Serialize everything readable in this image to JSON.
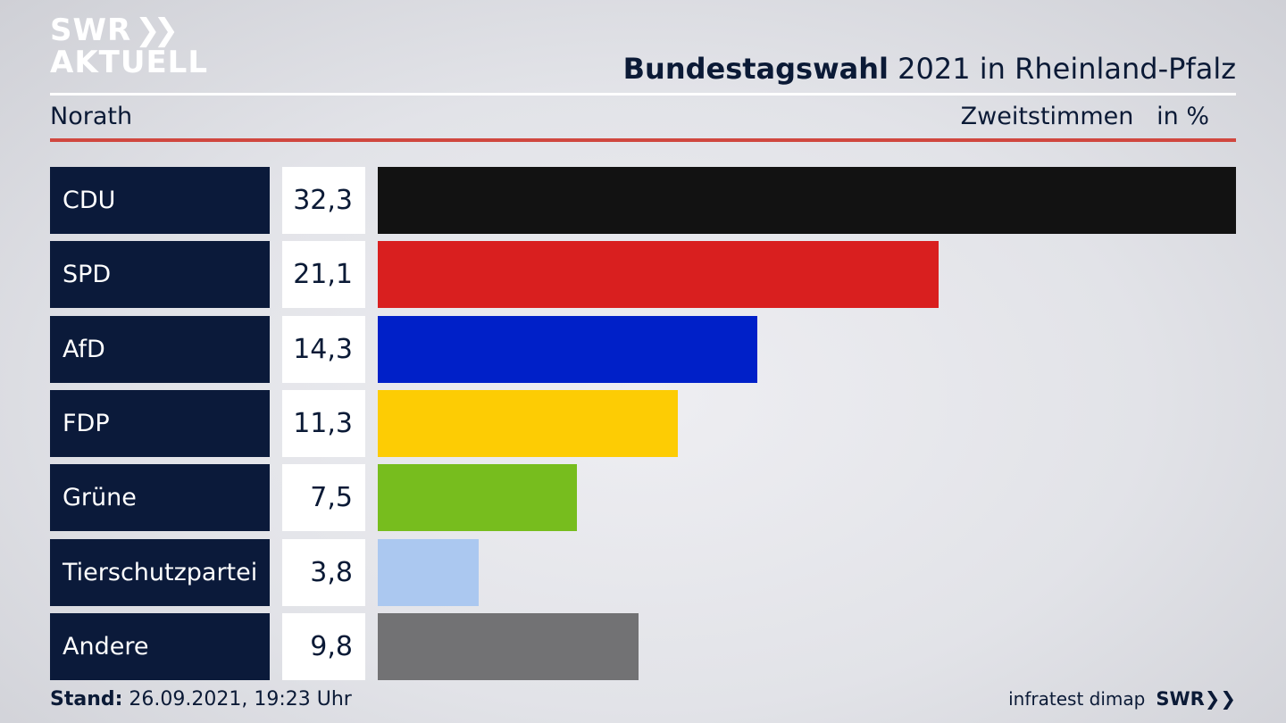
{
  "logo": {
    "line1": "SWR",
    "line2": "AKTUELL",
    "chevron_icon": "double-chevron-right-icon"
  },
  "header": {
    "title_bold": "Bundestagswahl",
    "title_rest": "2021 in Rheinland-Pfalz",
    "location": "Norath",
    "measure": "Zweitstimmen",
    "unit": "in %"
  },
  "chart_data": {
    "type": "bar",
    "orientation": "horizontal",
    "categories": [
      "CDU",
      "SPD",
      "AfD",
      "FDP",
      "Grüne",
      "Tierschutzpartei",
      "Andere"
    ],
    "values": [
      32.3,
      21.1,
      14.3,
      11.3,
      7.5,
      3.8,
      9.8
    ],
    "value_labels": [
      "32,3",
      "21,1",
      "14,3",
      "11,3",
      "7,5",
      "3,8",
      "9,8"
    ],
    "colors": [
      "#121212",
      "#d91f1f",
      "#0020c8",
      "#fdcc04",
      "#77bd1e",
      "#abc8f0",
      "#727274"
    ],
    "xlim": [
      0,
      32.3
    ]
  },
  "footer": {
    "stand_label": "Stand:",
    "stand_value": "26.09.2021, 19:23 Uhr",
    "source": "infratest dimap",
    "brand": "SWR",
    "brand_icon": "double-chevron-right-icon"
  }
}
